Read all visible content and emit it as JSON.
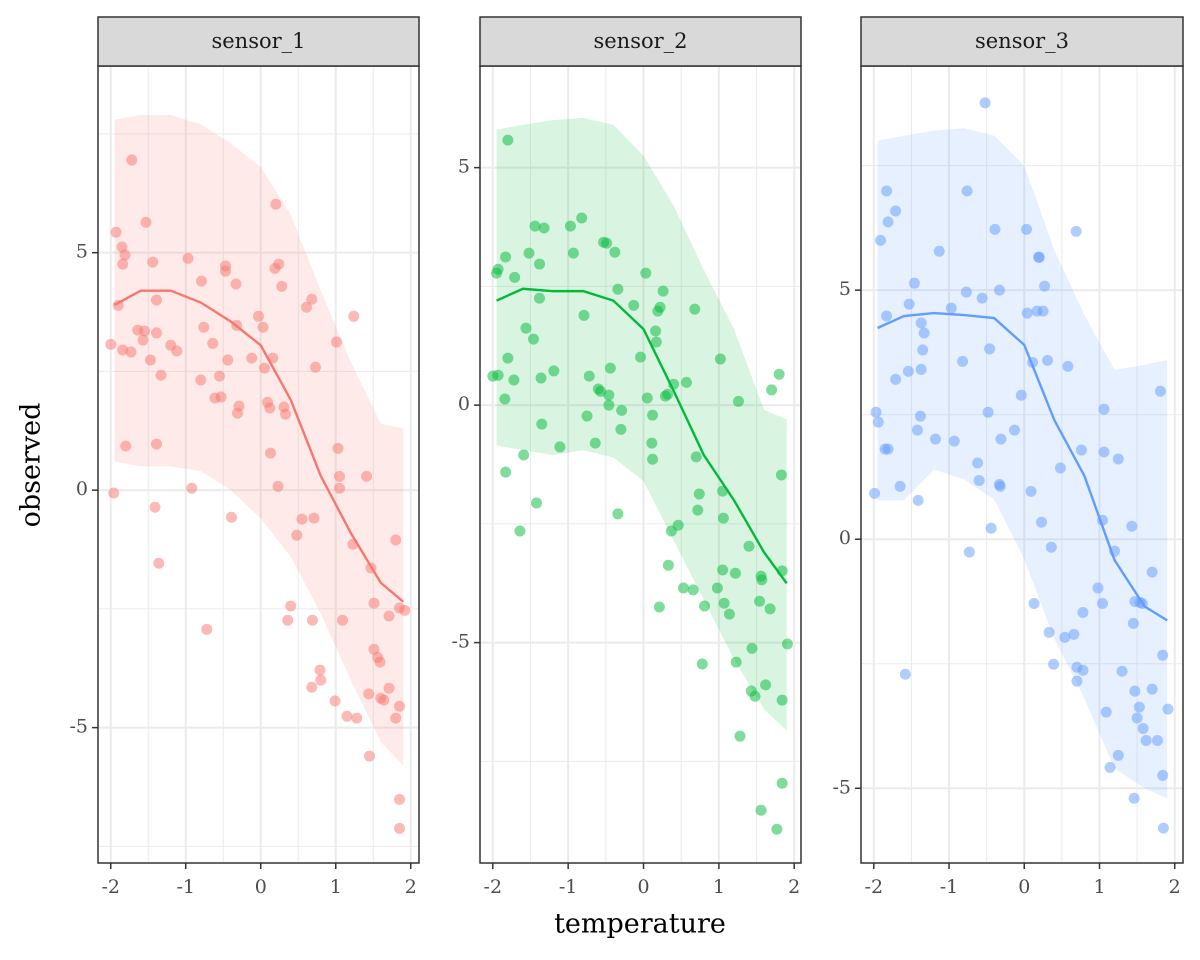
{
  "chart_data": [
    {
      "type": "scatter",
      "title": "sensor_1",
      "color": "#F8766D",
      "y_label": "observed",
      "xlim": [
        -2.17,
        2.11
      ],
      "ylim": [
        -7.85,
        8.93
      ],
      "xticks": [
        -2,
        -1,
        0,
        1,
        2
      ],
      "yticks": [
        -5,
        0,
        5
      ],
      "grid": true,
      "x": [
        -2.0,
        -1.96,
        -1.93,
        -1.9,
        -1.85,
        -1.84,
        -1.81,
        -1.84,
        -1.8,
        -1.72,
        -1.73,
        -1.64,
        -1.57,
        -1.55,
        -1.53,
        -1.47,
        -1.44,
        -1.41,
        -1.39,
        -1.39,
        -1.39,
        -1.36,
        -1.33,
        -1.2,
        -1.12,
        -0.97,
        -0.92,
        -0.8,
        -0.79,
        -0.76,
        -0.72,
        -0.64,
        -0.61,
        -0.55,
        -0.53,
        -0.47,
        -0.47,
        -0.44,
        -0.39,
        -0.33,
        -0.32,
        -0.31,
        -0.29,
        -0.12,
        -0.03,
        0.03,
        0.05,
        0.09,
        0.12,
        0.13,
        0.16,
        0.19,
        0.2,
        0.24,
        0.23,
        0.28,
        0.31,
        0.33,
        0.36,
        0.4,
        0.48,
        0.55,
        0.61,
        0.68,
        0.71,
        0.69,
        0.73,
        0.68,
        0.79,
        0.8,
        1.01,
        1.03,
        1.05,
        1.05,
        1.09,
        0.99,
        1.15,
        1.24,
        1.23,
        1.28,
        1.41,
        1.47,
        1.51,
        1.44,
        1.45,
        1.51,
        1.56,
        1.59,
        1.6,
        1.64,
        1.71,
        1.71,
        1.8,
        1.8,
        1.85,
        1.85,
        1.92,
        1.85,
        1.85
      ],
      "values": [
        3.07,
        -0.06,
        5.43,
        3.89,
        5.12,
        4.76,
        4.95,
        2.95,
        0.93,
        6.95,
        2.91,
        3.37,
        3.16,
        3.35,
        5.64,
        2.74,
        4.8,
        -0.36,
        4.0,
        3.31,
        0.97,
        -1.54,
        2.42,
        3.05,
        2.93,
        4.88,
        0.04,
        2.32,
        4.4,
        3.43,
        -2.93,
        3.09,
        1.94,
        2.4,
        1.96,
        4.72,
        4.61,
        2.74,
        -0.57,
        4.34,
        3.47,
        1.62,
        1.77,
        2.78,
        3.66,
        3.43,
        2.57,
        1.85,
        1.73,
        0.78,
        2.78,
        4.67,
        6.02,
        4.76,
        0.08,
        4.29,
        1.75,
        1.6,
        -2.74,
        -2.44,
        -0.95,
        -0.61,
        3.85,
        4.02,
        -0.59,
        -2.74,
        2.59,
        -4.15,
        -3.79,
        -4.0,
        3.12,
        0.88,
        0.29,
        0.04,
        -2.74,
        -4.44,
        -4.76,
        3.66,
        -1.14,
        -4.8,
        0.29,
        -1.64,
        -2.38,
        -4.29,
        -5.6,
        -3.35,
        -3.52,
        -3.62,
        -4.38,
        -4.42,
        -4.17,
        -2.65,
        -1.05,
        -4.8,
        -4.55,
        -2.48,
        -2.53,
        -6.51,
        -7.12
      ],
      "smooth": {
        "x": [
          -1.95,
          -1.6,
          -1.2,
          -0.8,
          -0.4,
          0,
          0.4,
          0.8,
          1.2,
          1.6,
          1.9
        ],
        "values": [
          3.9,
          4.2,
          4.2,
          3.95,
          3.55,
          3.05,
          1.9,
          0.3,
          -0.9,
          -1.95,
          -2.35
        ],
        "lower": [
          0.6,
          0.5,
          0.5,
          0.4,
          0.0,
          -0.6,
          -1.4,
          -2.6,
          -4.0,
          -5.3,
          -5.8
        ],
        "upper": [
          7.8,
          7.9,
          7.9,
          7.7,
          7.3,
          6.8,
          5.8,
          4.2,
          2.7,
          1.4,
          1.3
        ]
      }
    },
    {
      "type": "scatter",
      "title": "sensor_2",
      "color": "#00BA38",
      "x_label": "temperature",
      "xlim": [
        -2.17,
        2.09
      ],
      "ylim": [
        -9.64,
        7.14
      ],
      "xticks": [
        -2,
        -1,
        0,
        1,
        2
      ],
      "yticks": [
        -5,
        0,
        5
      ],
      "grid": true,
      "x": [
        -2.0,
        -1.93,
        -1.95,
        -1.93,
        -1.84,
        -1.83,
        -1.83,
        -1.8,
        -1.8,
        -1.72,
        -1.71,
        -1.64,
        -1.59,
        -1.56,
        -1.52,
        -1.46,
        -1.44,
        -1.42,
        -1.38,
        -1.38,
        -1.36,
        -1.35,
        -1.32,
        -1.19,
        -1.11,
        -0.97,
        -0.93,
        -0.82,
        -0.79,
        -0.75,
        -0.72,
        -0.64,
        -0.6,
        -0.57,
        -0.53,
        -0.49,
        -0.46,
        -0.46,
        -0.44,
        -0.38,
        -0.34,
        -0.34,
        -0.3,
        -0.29,
        -0.13,
        -0.04,
        0.03,
        0.05,
        0.11,
        0.12,
        0.12,
        0.16,
        0.17,
        0.19,
        0.22,
        0.21,
        0.26,
        0.29,
        0.32,
        0.33,
        0.37,
        0.4,
        0.46,
        0.53,
        0.57,
        0.66,
        0.68,
        0.7,
        0.72,
        0.74,
        0.78,
        0.81,
        0.98,
        1.02,
        1.05,
        1.06,
        1.05,
        1.07,
        1.14,
        1.22,
        1.23,
        1.26,
        1.28,
        1.4,
        1.44,
        1.43,
        1.48,
        1.54,
        1.56,
        1.57,
        1.56,
        1.62,
        1.68,
        1.7,
        1.77,
        1.8,
        1.83,
        1.84,
        1.84,
        1.84,
        1.91
      ],
      "values": [
        0.61,
        0.63,
        2.78,
        2.86,
        0.13,
        -1.41,
        3.12,
        0.99,
        5.58,
        0.53,
        2.69,
        -2.65,
        -1.05,
        1.62,
        3.2,
        1.39,
        3.77,
        -2.06,
        2.97,
        2.25,
        0.57,
        -0.4,
        3.73,
        0.72,
        -0.88,
        3.77,
        3.2,
        3.94,
        1.89,
        -0.23,
        0.61,
        -0.8,
        0.34,
        0.29,
        3.43,
        3.41,
        0.0,
        0.21,
        0.78,
        3.22,
        2.44,
        -2.29,
        -0.51,
        -0.11,
        2.1,
        1.01,
        2.78,
        0.15,
        -0.8,
        -1.14,
        -0.21,
        1.56,
        1.33,
        1.98,
        2.06,
        -4.25,
        2.4,
        0.19,
        0.23,
        -3.37,
        -2.65,
        0.44,
        -2.53,
        -3.85,
        0.48,
        -3.89,
        2.02,
        -1.09,
        -2.21,
        -1.87,
        -5.45,
        -4.23,
        -3.85,
        0.97,
        -3.47,
        -2.38,
        -1.81,
        -4.17,
        -4.4,
        -3.54,
        -5.41,
        0.08,
        -6.97,
        -2.97,
        -5.12,
        -6.02,
        -6.13,
        -4.13,
        -3.6,
        -3.68,
        -8.53,
        -5.89,
        -4.29,
        0.32,
        -8.93,
        0.65,
        -1.47,
        -3.49,
        -6.21,
        -7.96,
        -5.03
      ],
      "smooth": {
        "x": [
          -1.95,
          -1.6,
          -1.2,
          -0.8,
          -0.4,
          0,
          0.4,
          0.8,
          1.2,
          1.6,
          1.9
        ],
        "values": [
          2.2,
          2.45,
          2.4,
          2.4,
          2.2,
          1.6,
          0.3,
          -1.05,
          -2.0,
          -3.1,
          -3.75
        ],
        "lower": [
          -0.85,
          -0.95,
          -1.05,
          -0.95,
          -1.1,
          -1.6,
          -2.85,
          -4.1,
          -5.35,
          -6.4,
          -6.85
        ],
        "upper": [
          5.8,
          5.9,
          6.0,
          6.05,
          5.9,
          5.25,
          4.2,
          2.85,
          1.6,
          -0.1,
          -0.3
        ]
      }
    },
    {
      "type": "scatter",
      "title": "sensor_3",
      "color": "#619CFF",
      "xlim": [
        -2.17,
        2.11
      ],
      "ylim": [
        -6.5,
        9.5
      ],
      "xticks": [
        -2,
        -1,
        0,
        1,
        2
      ],
      "yticks": [
        -5,
        0,
        5
      ],
      "grid": true,
      "x": [
        -1.99,
        -1.97,
        -1.94,
        -1.91,
        -1.85,
        -1.83,
        -1.83,
        -1.81,
        -1.81,
        -1.71,
        -1.71,
        -1.65,
        -1.58,
        -1.54,
        -1.53,
        -1.46,
        -1.42,
        -1.41,
        -1.38,
        -1.37,
        -1.35,
        -1.37,
        -1.33,
        -1.18,
        -1.13,
        -0.93,
        -0.97,
        -0.82,
        -0.77,
        -0.76,
        -0.73,
        -0.62,
        -0.6,
        -0.56,
        -0.52,
        -0.48,
        -0.46,
        -0.44,
        -0.39,
        -0.33,
        -0.33,
        -0.32,
        -0.31,
        -0.13,
        -0.04,
        0.03,
        0.04,
        0.09,
        0.11,
        0.13,
        0.17,
        0.19,
        0.2,
        0.23,
        0.25,
        0.27,
        0.31,
        0.33,
        0.36,
        0.39,
        0.48,
        0.54,
        0.58,
        0.66,
        0.69,
        0.7,
        0.7,
        0.76,
        0.78,
        0.78,
        0.98,
        1.04,
        1.06,
        1.06,
        1.04,
        1.09,
        1.14,
        1.2,
        1.25,
        1.25,
        1.3,
        1.43,
        1.45,
        1.46,
        1.47,
        1.47,
        1.5,
        1.53,
        1.54,
        1.57,
        1.58,
        1.62,
        1.7,
        1.7,
        1.77,
        1.81,
        1.84,
        1.84,
        1.85,
        1.91
      ],
      "values": [
        0.92,
        2.55,
        2.35,
        6.0,
        1.81,
        6.99,
        4.48,
        1.81,
        6.37,
        6.59,
        3.21,
        1.06,
        -2.71,
        3.37,
        4.72,
        5.14,
        2.19,
        0.78,
        2.47,
        3.41,
        3.8,
        4.34,
        4.14,
        2.01,
        5.78,
        1.97,
        4.64,
        3.57,
        4.96,
        6.99,
        -0.26,
        1.53,
        1.18,
        4.84,
        8.76,
        2.55,
        3.82,
        0.22,
        6.22,
        5.0,
        1.1,
        1.06,
        2.01,
        2.19,
        2.89,
        6.22,
        4.54,
        0.96,
        3.55,
        -1.29,
        4.58,
        5.66,
        5.66,
        0.34,
        4.58,
        5.08,
        3.59,
        -1.87,
        -0.16,
        -2.51,
        1.43,
        -1.97,
        3.47,
        -1.91,
        6.18,
        -2.57,
        -2.85,
        1.79,
        -1.47,
        -2.63,
        -0.98,
        -1.29,
        2.61,
        1.75,
        0.38,
        -3.47,
        -4.58,
        -0.24,
        1.61,
        -4.34,
        -2.65,
        0.26,
        -1.69,
        -5.2,
        -3.05,
        -1.25,
        -3.59,
        -3.37,
        -1.27,
        -1.29,
        -3.8,
        -4.04,
        -3.01,
        -0.66,
        -4.04,
        2.97,
        -2.33,
        -4.74,
        -5.8,
        -3.41
      ],
      "smooth": {
        "x": [
          -1.95,
          -1.6,
          -1.2,
          -0.8,
          -0.4,
          0,
          0.4,
          0.8,
          1.2,
          1.6,
          1.9
        ],
        "values": [
          4.24,
          4.48,
          4.54,
          4.5,
          4.44,
          3.9,
          2.39,
          1.27,
          -0.42,
          -1.35,
          -1.63
        ],
        "lower": [
          0.78,
          0.78,
          1.4,
          1.2,
          0.8,
          -0.4,
          -2.0,
          -3.2,
          -4.6,
          -5.0,
          -5.2
        ],
        "upper": [
          8.0,
          8.1,
          8.2,
          8.25,
          8.1,
          7.5,
          5.8,
          4.5,
          3.4,
          3.5,
          3.6
        ]
      }
    }
  ]
}
